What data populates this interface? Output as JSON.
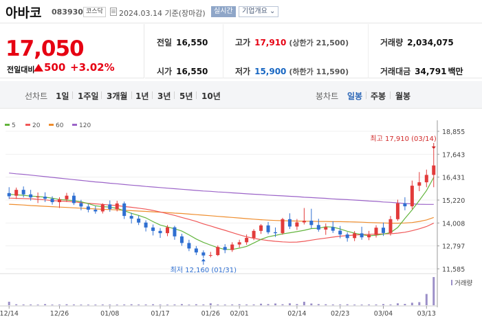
{
  "header": {
    "name": "아바코",
    "code": "083930",
    "market": "코스닥",
    "date": "2024.03.14  기준(장마감)",
    "realtime": "실시간",
    "overview": "기업개요"
  },
  "quote": {
    "price": "17,050",
    "change_label": "전일대비",
    "change_amount": "500",
    "change_rate": "+3.02%"
  },
  "metrics": {
    "prev_close_label": "전일",
    "prev_close": "16,550",
    "open_label": "시가",
    "open": "16,550",
    "high_label": "고가",
    "high": "17,910",
    "upper_limit_note": "(상한가 21,500)",
    "low_label": "저가",
    "low": "15,900",
    "lower_limit_note": "(하한가 11,590)",
    "volume_label": "거래량",
    "volume": "2,034,075",
    "value_label": "거래대금",
    "value": "34,791",
    "value_unit": "백만"
  },
  "tabs": {
    "line_head": "선차트",
    "line": [
      "1일",
      "1주일",
      "3개월",
      "1년",
      "3년",
      "5년",
      "10년"
    ],
    "candle_head": "봉차트",
    "candle": [
      "일봉",
      "주봉",
      "월봉"
    ],
    "active": "일봉"
  },
  "chart_data": {
    "type": "line",
    "legend": [
      {
        "name": "5",
        "color": "#62b43c"
      },
      {
        "name": "20",
        "color": "#f05757"
      },
      {
        "name": "60",
        "color": "#ef8d2d"
      },
      {
        "name": "120",
        "color": "#9b63c8"
      }
    ],
    "ylim": [
      11585,
      18855
    ],
    "yticks": [
      "18,855",
      "17,643",
      "16,431",
      "15,220",
      "14,008",
      "12,797",
      "11,585"
    ],
    "xticks": [
      "12/14",
      "12/26",
      "01/08",
      "01/17",
      "01/26",
      "02/01",
      "02/14",
      "02/23",
      "03/04",
      "03/13"
    ],
    "annotations": {
      "high": {
        "label": "최고 17,910 (03/14)",
        "value": 17910
      },
      "low": {
        "label": "최저 12,160 (01/31)",
        "value": 12160
      }
    },
    "volume_label": "거래량",
    "candles": [
      {
        "open": 15590,
        "high": 15900,
        "low": 15280,
        "close": 15420
      },
      {
        "open": 15450,
        "high": 15880,
        "low": 15280,
        "close": 15760
      },
      {
        "open": 15760,
        "high": 15940,
        "low": 15360,
        "close": 15520
      },
      {
        "open": 15520,
        "high": 15760,
        "low": 15190,
        "close": 15360
      },
      {
        "open": 15360,
        "high": 15620,
        "low": 15060,
        "close": 15400
      },
      {
        "open": 15400,
        "high": 15630,
        "low": 15120,
        "close": 15290
      },
      {
        "open": 15290,
        "high": 15420,
        "low": 14980,
        "close": 15110
      },
      {
        "open": 15110,
        "high": 15370,
        "low": 14800,
        "close": 15260
      },
      {
        "open": 15260,
        "high": 15600,
        "low": 15120,
        "close": 15450
      },
      {
        "open": 15450,
        "high": 15610,
        "low": 14960,
        "close": 15060
      },
      {
        "open": 15060,
        "high": 15230,
        "low": 14680,
        "close": 14880
      },
      {
        "open": 14880,
        "high": 15010,
        "low": 14570,
        "close": 14710
      },
      {
        "open": 14710,
        "high": 14900,
        "low": 14500,
        "close": 14620
      },
      {
        "open": 14620,
        "high": 15050,
        "low": 14510,
        "close": 14990
      },
      {
        "open": 14990,
        "high": 15200,
        "low": 14600,
        "close": 14740
      },
      {
        "open": 14740,
        "high": 15180,
        "low": 14620,
        "close": 15040
      },
      {
        "open": 15040,
        "high": 15140,
        "low": 14220,
        "close": 14380
      },
      {
        "open": 14380,
        "high": 14550,
        "low": 13980,
        "close": 14240
      },
      {
        "open": 14240,
        "high": 14400,
        "low": 13900,
        "close": 14030
      },
      {
        "open": 14030,
        "high": 14150,
        "low": 13560,
        "close": 13770
      },
      {
        "open": 13770,
        "high": 13930,
        "low": 13350,
        "close": 13590
      },
      {
        "open": 13590,
        "high": 13740,
        "low": 13220,
        "close": 13470
      },
      {
        "open": 13470,
        "high": 13900,
        "low": 13310,
        "close": 13780
      },
      {
        "open": 13780,
        "high": 13860,
        "low": 13120,
        "close": 13300
      },
      {
        "open": 13300,
        "high": 13440,
        "low": 12800,
        "close": 12950
      },
      {
        "open": 12950,
        "high": 13120,
        "low": 12520,
        "close": 12660
      },
      {
        "open": 12660,
        "high": 12790,
        "low": 12310,
        "close": 12450
      },
      {
        "open": 12450,
        "high": 12560,
        "low": 12160,
        "close": 12290
      },
      {
        "open": 12290,
        "high": 12480,
        "low": 12190,
        "close": 12310
      },
      {
        "open": 12310,
        "high": 12820,
        "low": 12260,
        "close": 12740
      },
      {
        "open": 12740,
        "high": 12890,
        "low": 12410,
        "close": 12580
      },
      {
        "open": 12580,
        "high": 12990,
        "low": 12480,
        "close": 12870
      },
      {
        "open": 12870,
        "high": 13120,
        "low": 12710,
        "close": 12990
      },
      {
        "open": 12990,
        "high": 13400,
        "low": 12850,
        "close": 13220
      },
      {
        "open": 13220,
        "high": 13680,
        "low": 13100,
        "close": 13590
      },
      {
        "open": 13590,
        "high": 13950,
        "low": 13430,
        "close": 13880
      },
      {
        "open": 13880,
        "high": 14060,
        "low": 13420,
        "close": 13520
      },
      {
        "open": 13520,
        "high": 13770,
        "low": 13270,
        "close": 13470
      },
      {
        "open": 13470,
        "high": 14280,
        "low": 13390,
        "close": 14210
      },
      {
        "open": 14210,
        "high": 14520,
        "low": 13690,
        "close": 13820
      },
      {
        "open": 13820,
        "high": 14220,
        "low": 13640,
        "close": 14040
      },
      {
        "open": 14040,
        "high": 14800,
        "low": 13930,
        "close": 14130
      },
      {
        "open": 14130,
        "high": 14760,
        "low": 13720,
        "close": 13900
      },
      {
        "open": 13900,
        "high": 14230,
        "low": 13550,
        "close": 13660
      },
      {
        "open": 13660,
        "high": 13980,
        "low": 13380,
        "close": 13790
      },
      {
        "open": 13790,
        "high": 14100,
        "low": 13480,
        "close": 13600
      },
      {
        "open": 13600,
        "high": 13850,
        "low": 13200,
        "close": 13400
      },
      {
        "open": 13400,
        "high": 13520,
        "low": 13020,
        "close": 13210
      },
      {
        "open": 13210,
        "high": 13580,
        "low": 13050,
        "close": 13460
      },
      {
        "open": 13460,
        "high": 13810,
        "low": 13120,
        "close": 13250
      },
      {
        "open": 13250,
        "high": 13590,
        "low": 13100,
        "close": 13380
      },
      {
        "open": 13380,
        "high": 13890,
        "low": 13240,
        "close": 13760
      },
      {
        "open": 13760,
        "high": 14030,
        "low": 13320,
        "close": 13480
      },
      {
        "open": 13480,
        "high": 14380,
        "low": 13340,
        "close": 14210
      },
      {
        "open": 14210,
        "high": 15240,
        "low": 14120,
        "close": 15050
      },
      {
        "open": 15050,
        "high": 15370,
        "low": 14680,
        "close": 14890
      },
      {
        "open": 14890,
        "high": 16250,
        "low": 14740,
        "close": 15980
      },
      {
        "open": 15980,
        "high": 16700,
        "low": 15690,
        "close": 16160
      },
      {
        "open": 16160,
        "high": 16830,
        "low": 15900,
        "close": 16550
      },
      {
        "open": 16550,
        "high": 17910,
        "low": 15900,
        "close": 17050
      }
    ],
    "ma5": [
      15520,
      15500,
      15470,
      15430,
      15410,
      15370,
      15320,
      15250,
      15220,
      15190,
      15130,
      15030,
      14920,
      14870,
      14850,
      14780,
      14660,
      14520,
      14410,
      14280,
      14080,
      13900,
      13800,
      13700,
      13580,
      13380,
      13160,
      12980,
      12840,
      12700,
      12610,
      12610,
      12680,
      12770,
      12950,
      13140,
      13280,
      13350,
      13430,
      13490,
      13550,
      13620,
      13710,
      13730,
      13810,
      13790,
      13690,
      13570,
      13470,
      13390,
      13330,
      13360,
      13420,
      13500,
      13770,
      14250,
      14700,
      15200,
      15720,
      16420
    ],
    "ma20": [
      15320,
      15310,
      15300,
      15290,
      15260,
      15230,
      15190,
      15170,
      15150,
      15120,
      15090,
      15050,
      15020,
      14990,
      14960,
      14930,
      14880,
      14840,
      14790,
      14740,
      14670,
      14590,
      14500,
      14410,
      14300,
      14200,
      14090,
      13960,
      13850,
      13730,
      13620,
      13500,
      13380,
      13280,
      13200,
      13130,
      13080,
      13040,
      13010,
      12990,
      13000,
      13040,
      13100,
      13160,
      13210,
      13260,
      13310,
      13340,
      13370,
      13390,
      13410,
      13420,
      13430,
      13440,
      13470,
      13520,
      13600,
      13700,
      13820,
      14000
    ],
    "ma60": [
      15000,
      14980,
      14960,
      14930,
      14910,
      14890,
      14870,
      14850,
      14830,
      14810,
      14790,
      14770,
      14750,
      14730,
      14720,
      14700,
      14680,
      14660,
      14640,
      14620,
      14600,
      14580,
      14560,
      14530,
      14510,
      14480,
      14450,
      14420,
      14390,
      14360,
      14330,
      14300,
      14270,
      14240,
      14210,
      14180,
      14160,
      14140,
      14130,
      14120,
      14110,
      14100,
      14100,
      14090,
      14090,
      14080,
      14080,
      14070,
      14060,
      14050,
      14030,
      14020,
      14010,
      14000,
      14000,
      14010,
      14030,
      14090,
      14170,
      14300
    ],
    "ma120": [
      16650,
      16610,
      16580,
      16540,
      16500,
      16460,
      16420,
      16380,
      16340,
      16300,
      16260,
      16220,
      16180,
      16150,
      16110,
      16080,
      16040,
      16010,
      15980,
      15940,
      15910,
      15880,
      15850,
      15820,
      15790,
      15760,
      15730,
      15700,
      15680,
      15650,
      15630,
      15600,
      15580,
      15550,
      15530,
      15510,
      15480,
      15460,
      15440,
      15420,
      15400,
      15370,
      15350,
      15330,
      15310,
      15280,
      15260,
      15240,
      15220,
      15200,
      15170,
      15150,
      15120,
      15100,
      15070,
      15040,
      15020,
      15000,
      14990,
      14990
    ],
    "volume": [
      18,
      5,
      4,
      4,
      3,
      6,
      3,
      3,
      5,
      4,
      2,
      3,
      3,
      4,
      3,
      3,
      4,
      5,
      4,
      4,
      5,
      3,
      3,
      4,
      6,
      3,
      5,
      4,
      10,
      4,
      3,
      4,
      5,
      4,
      4,
      8,
      6,
      9,
      5,
      10,
      6,
      18,
      9,
      6,
      5,
      4,
      4,
      5,
      3,
      3,
      4,
      4,
      6,
      4,
      10,
      7,
      13,
      16,
      58,
      145
    ]
  }
}
